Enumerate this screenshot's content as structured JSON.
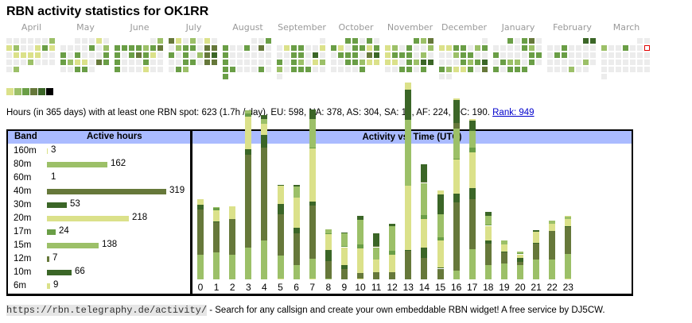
{
  "title": "RBN activity statistics for OK1RR",
  "colors": {
    "levels": [
      "#ececec",
      "#dbe18a",
      "#9cc068",
      "#6a9e46",
      "#66783a",
      "#3b6627",
      "#000000"
    ],
    "header_bg": "#aabbff",
    "today_outline": "#e00000",
    "link": "#0000cc"
  },
  "heatmap": {
    "months": [
      {
        "label": "April",
        "rows": [
          [
            0,
            0,
            0,
            0,
            0,
            0,
            2
          ],
          [
            1,
            2,
            0,
            0,
            1,
            3,
            1
          ],
          [
            0,
            1,
            1,
            1,
            1,
            0,
            0
          ],
          [
            0,
            0,
            0,
            2,
            0,
            0,
            0
          ],
          [
            0,
            2,
            -1,
            -1,
            -1,
            -1,
            -1
          ],
          [
            -1,
            -1,
            -1,
            -1,
            -1,
            -1,
            -1
          ]
        ]
      },
      {
        "label": "May",
        "rows": [
          [
            -1,
            -1,
            0,
            0,
            0,
            1,
            0
          ],
          [
            0,
            0,
            0,
            0,
            3,
            0,
            2
          ],
          [
            3,
            0,
            3,
            0,
            0,
            0,
            3
          ],
          [
            3,
            2,
            1,
            1,
            0,
            4,
            3
          ],
          [
            0,
            0,
            3,
            3,
            0,
            -1,
            -1
          ],
          [
            -1,
            -1,
            -1,
            -1,
            -1,
            -1,
            -1
          ]
        ]
      },
      {
        "label": "June",
        "rows": [
          [
            -1,
            -1,
            -1,
            -1,
            -1,
            0,
            2
          ],
          [
            3,
            3,
            3,
            3,
            2,
            3,
            4
          ],
          [
            3,
            0,
            3,
            4,
            3,
            1,
            0
          ],
          [
            3,
            0,
            0,
            0,
            3,
            0,
            0
          ],
          [
            3,
            0,
            0,
            0,
            1,
            0,
            0
          ],
          [
            -1,
            -1,
            -1,
            -1,
            -1,
            -1,
            -1
          ]
        ]
      },
      {
        "label": "July",
        "rows": [
          [
            4,
            1,
            0,
            2,
            0,
            1,
            0
          ],
          [
            0,
            2,
            3,
            3,
            0,
            4,
            4
          ],
          [
            3,
            0,
            3,
            0,
            2,
            4,
            5
          ],
          [
            0,
            0,
            3,
            3,
            0,
            4,
            4
          ],
          [
            0,
            3,
            2,
            -1,
            -1,
            -1,
            -1
          ],
          [
            -1,
            -1,
            -1,
            -1,
            -1,
            -1,
            -1
          ]
        ]
      },
      {
        "label": "August",
        "rows": [
          [
            -1,
            -1,
            -1,
            -1,
            0,
            0,
            3
          ],
          [
            3,
            0,
            0,
            3,
            0,
            4,
            0
          ],
          [
            3,
            0,
            0,
            0,
            0,
            0,
            0
          ],
          [
            3,
            0,
            0,
            0,
            0,
            0,
            0
          ],
          [
            3,
            3,
            0,
            0,
            0,
            3,
            0
          ],
          [
            3,
            -1,
            -1,
            -1,
            -1,
            -1,
            -1
          ]
        ]
      },
      {
        "label": "September",
        "rows": [
          [
            -1,
            -1,
            -1,
            -1,
            -1,
            -1,
            0
          ],
          [
            0,
            1,
            3,
            3,
            0,
            0,
            1
          ],
          [
            0,
            0,
            3,
            3,
            0,
            5,
            0
          ],
          [
            3,
            0,
            3,
            2,
            0,
            1,
            2
          ],
          [
            2,
            0,
            3,
            3,
            3,
            0,
            0
          ],
          [
            0,
            -1,
            -1,
            -1,
            -1,
            -1,
            -1
          ]
        ]
      },
      {
        "label": "October",
        "rows": [
          [
            -1,
            -1,
            3,
            3,
            0,
            3,
            0
          ],
          [
            3,
            1,
            0,
            3,
            3,
            1,
            3
          ],
          [
            0,
            3,
            3,
            3,
            0,
            4,
            5
          ],
          [
            0,
            0,
            3,
            3,
            2,
            1,
            1
          ],
          [
            0,
            0,
            0,
            0,
            3,
            -1,
            -1
          ],
          [
            -1,
            -1,
            -1,
            -1,
            -1,
            -1,
            -1
          ]
        ]
      },
      {
        "label": "November",
        "rows": [
          [
            -1,
            -1,
            -1,
            -1,
            3,
            2,
            4
          ],
          [
            1,
            2,
            0,
            3,
            0,
            0,
            2
          ],
          [
            1,
            3,
            3,
            3,
            0,
            2,
            0
          ],
          [
            1,
            1,
            0,
            3,
            2,
            5,
            5
          ],
          [
            0,
            0,
            3,
            3,
            0,
            3,
            -1
          ],
          [
            -1,
            -1,
            -1,
            -1,
            -1,
            -1,
            -1
          ]
        ]
      },
      {
        "label": "December",
        "rows": [
          [
            -1,
            -1,
            -1,
            -1,
            -1,
            -1,
            0
          ],
          [
            1,
            1,
            3,
            3,
            0,
            2,
            3
          ],
          [
            0,
            0,
            2,
            3,
            3,
            0,
            0
          ],
          [
            0,
            0,
            0,
            3,
            2,
            3,
            5
          ],
          [
            3,
            2,
            1,
            1,
            3,
            0,
            4
          ],
          [
            0,
            0,
            -1,
            -1,
            -1,
            -1,
            -1
          ]
        ]
      },
      {
        "label": "January",
        "rows": [
          [
            -1,
            -1,
            3,
            0,
            3,
            4,
            0
          ],
          [
            0,
            0,
            0,
            0,
            3,
            2,
            0
          ],
          [
            3,
            0,
            0,
            0,
            0,
            3,
            3
          ],
          [
            0,
            3,
            2,
            2,
            0,
            3,
            0
          ],
          [
            3,
            0,
            3,
            3,
            3,
            -1,
            -1
          ],
          [
            -1,
            -1,
            -1,
            -1,
            -1,
            -1,
            -1
          ]
        ]
      },
      {
        "label": "February",
        "rows": [
          [
            -1,
            -1,
            -1,
            -1,
            -1,
            5,
            5
          ],
          [
            0,
            0,
            3,
            0,
            0,
            0,
            0
          ],
          [
            0,
            3,
            3,
            0,
            0,
            0,
            0
          ],
          [
            0,
            0,
            0,
            0,
            0,
            2,
            0
          ],
          [
            0,
            0,
            0,
            2,
            0,
            0,
            -1
          ],
          [
            -1,
            -1,
            -1,
            -1,
            -1,
            -1,
            -1
          ]
        ]
      },
      {
        "label": "March",
        "rows": [
          [
            -1,
            -1,
            -1,
            -1,
            -1,
            0,
            0
          ],
          [
            2,
            0,
            0,
            3,
            0,
            0,
            "today"
          ],
          [
            0,
            0,
            0,
            0,
            0,
            0,
            0
          ],
          [
            0,
            0,
            0,
            0,
            0,
            0,
            0
          ],
          [
            0,
            0,
            0,
            0,
            0,
            0,
            0
          ],
          [
            0,
            -1,
            -1,
            -1,
            -1,
            -1,
            -1
          ]
        ]
      }
    ]
  },
  "stats": {
    "text": "Hours (in 365 days) with at least one RBN spot: 623 (1.7h / day). EU: 598, NA: 378, AS: 304, SA: 13, AF: 224, OC: 190.",
    "rank_link": "Rank: 949"
  },
  "band_table": {
    "header_band": "Band",
    "header_hours": "Active hours",
    "max_hours": 319,
    "rows": [
      {
        "band": "160m",
        "hours": 3,
        "color": "#dbe18a"
      },
      {
        "band": "80m",
        "hours": 162,
        "color": "#9cc068"
      },
      {
        "band": "60m",
        "hours": 1,
        "color": "#ffffff"
      },
      {
        "band": "40m",
        "hours": 319,
        "color": "#66783a"
      },
      {
        "band": "30m",
        "hours": 53,
        "color": "#3b6627"
      },
      {
        "band": "20m",
        "hours": 218,
        "color": "#dbe18a"
      },
      {
        "band": "17m",
        "hours": 24,
        "color": "#6a9e46"
      },
      {
        "band": "15m",
        "hours": 138,
        "color": "#9cc068"
      },
      {
        "band": "12m",
        "hours": 7,
        "color": "#66783a"
      },
      {
        "band": "10m",
        "hours": 66,
        "color": "#3b6627"
      },
      {
        "band": "6m",
        "hours": 9,
        "color": "#dbe18a"
      }
    ]
  },
  "chart_data": {
    "type": "bar",
    "stacked": true,
    "title": "Activity vs. Time (UTC)",
    "xlabel": "",
    "ylabel": "",
    "categories": [
      "0",
      "1",
      "2",
      "3",
      "4",
      "5",
      "6",
      "7",
      "8",
      "9",
      "10",
      "11",
      "12",
      "13",
      "14",
      "15",
      "16",
      "17",
      "18",
      "19",
      "20",
      "21",
      "22",
      "23"
    ],
    "series": [
      {
        "name": "160m",
        "color": "#dbe18a",
        "values": [
          0,
          0,
          0,
          0,
          0,
          0.2,
          0,
          0.2,
          0,
          0,
          0.2,
          0,
          0,
          0,
          0,
          0,
          0,
          0,
          0,
          0,
          0,
          0,
          0,
          0.2
        ]
      },
      {
        "name": "80m",
        "color": "#9cc068",
        "values": [
          7,
          7.5,
          7,
          9,
          11,
          6.5,
          4,
          5.5,
          0.2,
          0,
          0,
          0,
          0,
          0,
          0,
          0,
          2.5,
          8.5,
          4,
          4.5,
          4,
          5.5,
          5.5,
          7
        ]
      },
      {
        "name": "40m",
        "color": "#66783a",
        "values": [
          12.5,
          8.5,
          10,
          26,
          26,
          11.5,
          9,
          15,
          5,
          3,
          1.5,
          2,
          2,
          8,
          6,
          3,
          19,
          14,
          6,
          3,
          1,
          4.5,
          8,
          7.5
        ]
      },
      {
        "name": "30m",
        "color": "#3b6627",
        "values": [
          1.5,
          0.3,
          0,
          1.5,
          3.5,
          3,
          1.5,
          1,
          3,
          1,
          0,
          0,
          0,
          0.2,
          3,
          0.3,
          2.5,
          3,
          1,
          0.3,
          1,
          0.3,
          0,
          0.3
        ]
      },
      {
        "name": "20m",
        "color": "#dbe18a",
        "values": [
          1.5,
          3,
          3.5,
          9,
          3,
          5,
          8.5,
          15,
          4.5,
          5,
          7,
          3.5,
          5,
          18,
          8,
          7.5,
          9.5,
          10,
          4,
          2,
          1,
          3,
          2,
          2
        ]
      },
      {
        "name": "17m",
        "color": "#6a9e46",
        "values": [
          0,
          0.6,
          0,
          1,
          0,
          0,
          0,
          0.3,
          0.3,
          0.3,
          1,
          0,
          1,
          0,
          1,
          1,
          0.3,
          1.5,
          0.3,
          0,
          0.3,
          0,
          0,
          0
        ]
      },
      {
        "name": "15m",
        "color": "#9cc068",
        "values": [
          0,
          0.3,
          0,
          0.8,
          1.5,
          0,
          3,
          8,
          1,
          3.5,
          7,
          3.5,
          7,
          18.5,
          9,
          6.5,
          8.5,
          4.5,
          2.5,
          1,
          0.5,
          0,
          1,
          0.5
        ]
      },
      {
        "name": "12m",
        "color": "#66783a",
        "values": [
          0,
          0,
          0,
          0,
          0,
          0,
          0,
          0,
          0,
          0,
          0,
          0.3,
          0,
          0,
          0.3,
          0,
          1.5,
          0,
          0,
          0,
          0,
          0,
          0,
          0
        ]
      },
      {
        "name": "10m",
        "color": "#3b6627",
        "values": [
          0,
          0,
          0,
          0,
          1,
          0.3,
          0.5,
          2.5,
          0,
          0.3,
          1,
          3.5,
          0.5,
          8.5,
          5,
          5.5,
          6.5,
          3,
          1,
          0,
          0,
          0.5,
          0,
          0
        ]
      },
      {
        "name": "6m",
        "color": "#dbe18a",
        "values": [
          0,
          0,
          0,
          0,
          0,
          0,
          0,
          0,
          0,
          0,
          0,
          0,
          0,
          2,
          0,
          1,
          0.3,
          0.3,
          0,
          0,
          0,
          0,
          0,
          0.3
        ]
      }
    ],
    "ylim": [
      0,
      36
    ],
    "grid": false,
    "legend": "none"
  },
  "footer": {
    "url": "https://rbn.telegraphy.de/activity/",
    "text": " - Search for any callsign and create your own embeddable RBN widget! A free service by DJ5CW."
  }
}
